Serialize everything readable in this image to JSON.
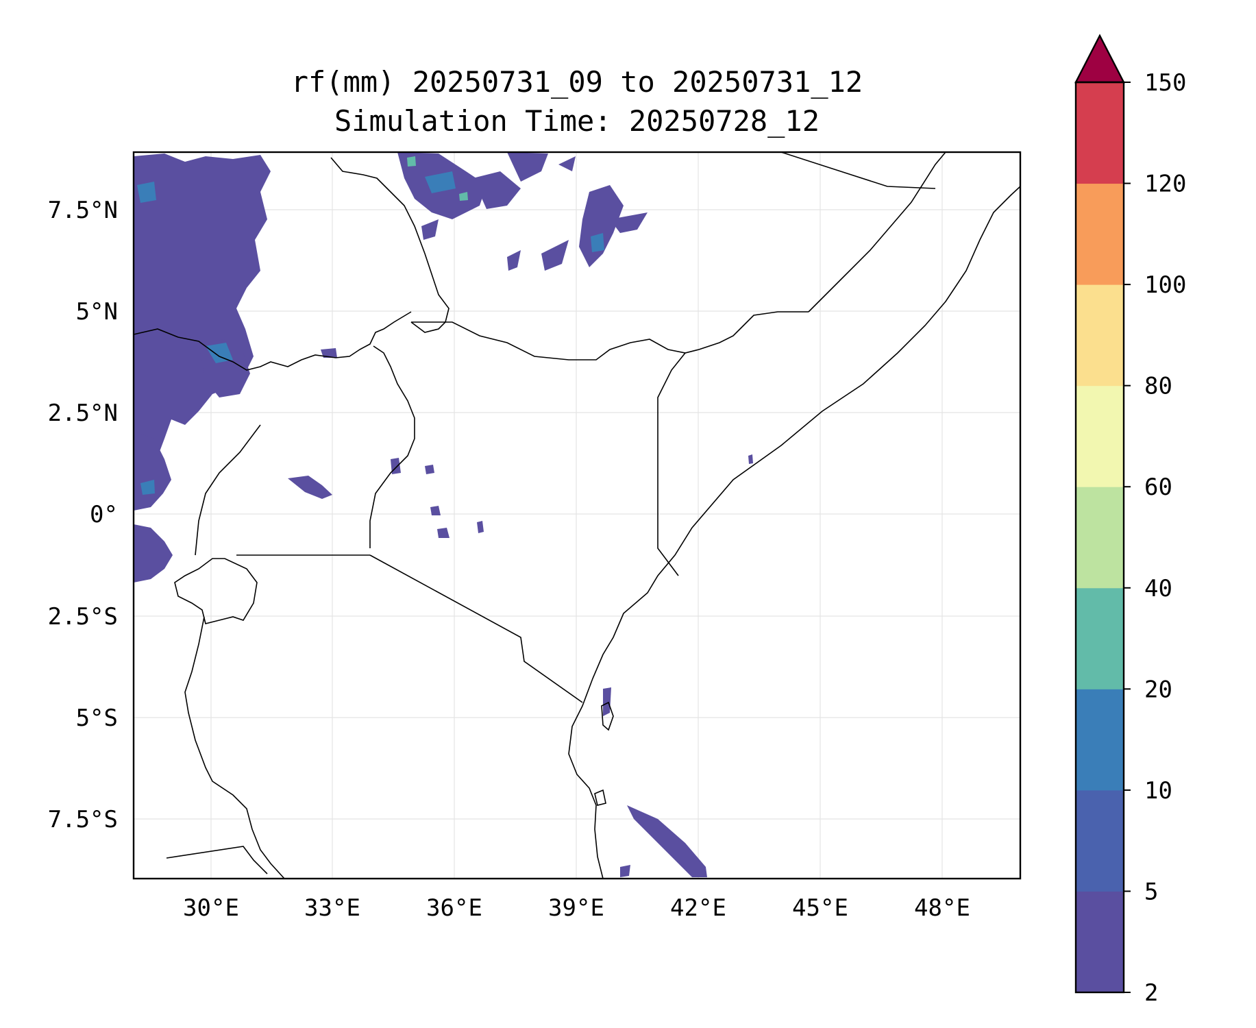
{
  "title": {
    "line1": "rf(mm) 20250731_09 to 20250731_12",
    "line2": "Simulation Time: 20250728_12"
  },
  "map": {
    "lon_ticks": [
      "30°E",
      "33°E",
      "36°E",
      "39°E",
      "42°E",
      "45°E",
      "48°E"
    ],
    "lat_ticks": [
      "7.5°N",
      "5°N",
      "2.5°N",
      "0°",
      "2.5°S",
      "5°S",
      "7.5°S"
    ],
    "gridlines": true
  },
  "colorbar": {
    "levels": [
      "2",
      "5",
      "10",
      "20",
      "40",
      "60",
      "80",
      "100",
      "120",
      "150"
    ],
    "colors": [
      "#5a4fa0",
      "#4a62ae",
      "#3a7eb8",
      "#62bba9",
      "#bde3a0",
      "#f2f7b0",
      "#fbdf8e",
      "#f89c5a",
      "#d53e4f",
      "#9e0142"
    ],
    "extend": "max"
  },
  "rain_color_low": "#5a4fa0",
  "rain_color_mid": "#3a7eb8",
  "rain_color_high": "#62bba9"
}
